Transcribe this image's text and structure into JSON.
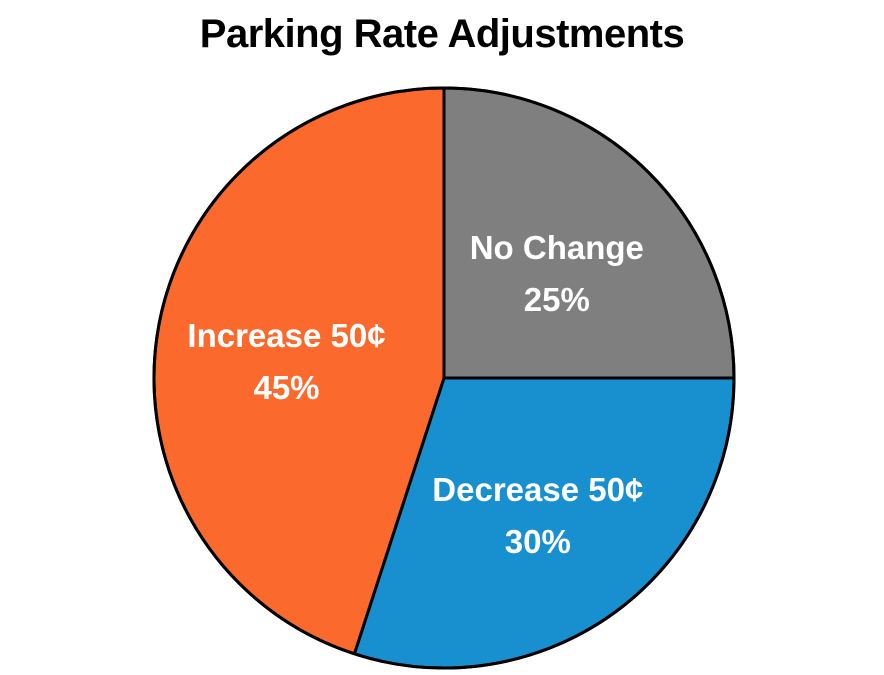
{
  "chart_data": {
    "type": "pie",
    "title": "Parking Rate Adjustments",
    "slices": [
      {
        "name": "No Change",
        "value": 25,
        "value_label": "25%",
        "color": "#7f7f80"
      },
      {
        "name": "Decrease 50¢",
        "value": 30,
        "value_label": "30%",
        "color": "#1890d0"
      },
      {
        "name": "Increase 50¢",
        "value": 45,
        "value_label": "45%",
        "color": "#fb6a2c"
      }
    ],
    "start_angle_deg": 0,
    "direction": "clockwise",
    "border_color": "#000000",
    "legend": "none"
  }
}
